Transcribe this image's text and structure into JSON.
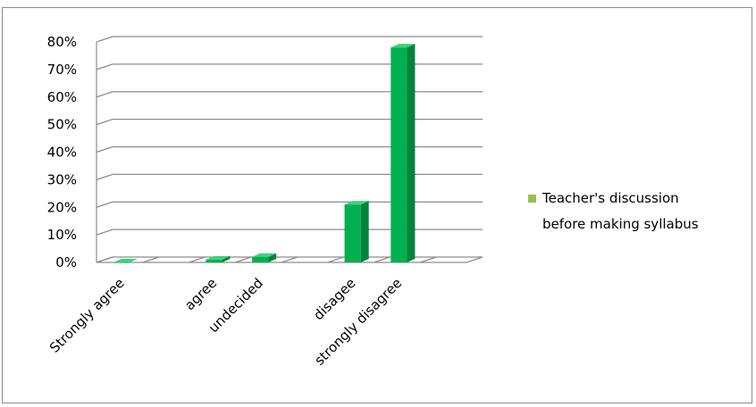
{
  "chart_data": {
    "type": "bar",
    "style": "3d-column",
    "categories": [
      "Strongly agree",
      "",
      "agree",
      "undecided",
      "",
      "disagee",
      "strongly disagree",
      ""
    ],
    "series": [
      {
        "name": "Teacher's discussion before making syllabus",
        "values": [
          0,
          null,
          1,
          2,
          null,
          21,
          78,
          null
        ]
      }
    ],
    "y_ticks": [
      "0%",
      "10%",
      "20%",
      "30%",
      "40%",
      "50%",
      "60%",
      "70%",
      "80%"
    ],
    "ylim": [
      0,
      80
    ],
    "grid": true,
    "legend_position": "right",
    "legend_lines": [
      "Teacher's discussion",
      "before making syllabus"
    ],
    "colors": {
      "bar_front": "#00b050",
      "bar_side": "#00843b",
      "bar_top": "#3ed07a",
      "legend_swatch": "#92c14c",
      "grid": "#8c8c8c"
    }
  }
}
